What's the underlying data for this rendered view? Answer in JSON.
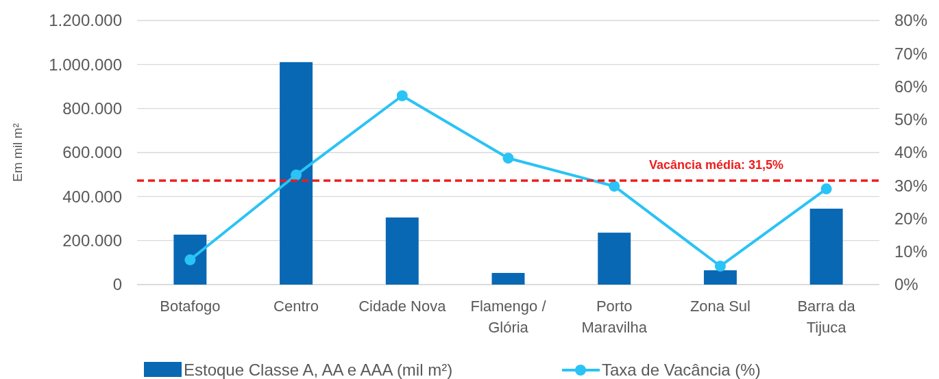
{
  "chart_data": {
    "type": "bar",
    "categories": [
      "Botafogo",
      "Centro",
      "Cidade Nova",
      "Flamengo / Glória",
      "Porto Maravilha",
      "Zona Sul",
      "Barra da Tijuca"
    ],
    "series": [
      {
        "name": "Estoque Classe A, AA e AAA (mil m²)",
        "color": "#0868b4",
        "values": [
          227000,
          1011000,
          305000,
          53000,
          236000,
          65000,
          345000
        ]
      },
      {
        "name": "Taxa de Vacância (%)",
        "type": "line",
        "axis": "y2",
        "color": "#2ac3f5",
        "values": [
          7.5,
          33.2,
          57.2,
          38.3,
          29.8,
          5.6,
          29.0
        ]
      }
    ],
    "ylabel": "Em mil m²",
    "ylim": [
      0,
      1200000
    ],
    "yticks": [
      0,
      {
        "value": 200000,
        "label": "200.000"
      },
      {
        "value": 400000,
        "label": "400.000"
      },
      {
        "value": 600000,
        "label": "600.000"
      },
      {
        "value": 800000,
        "label": "800.000"
      },
      {
        "value": 1000000,
        "label": "1.000.000"
      },
      {
        "value": 1200000,
        "label": "1.200.000"
      }
    ],
    "y2lim": [
      0,
      80
    ],
    "y2ticks": [
      {
        "value": 0,
        "label": "0%"
      },
      {
        "value": 10,
        "label": "10%"
      },
      {
        "value": 20,
        "label": "20%"
      },
      {
        "value": 30,
        "label": "30%"
      },
      {
        "value": 40,
        "label": "40%"
      },
      {
        "value": 50,
        "label": "50%"
      },
      {
        "value": 60,
        "label": "60%"
      },
      {
        "value": 70,
        "label": "70%"
      },
      {
        "value": 80,
        "label": "80%"
      }
    ],
    "ref_lines": [
      {
        "axis": "y2",
        "value": 31.5,
        "label": "Vacância média: 31,5%",
        "color": "#ee1c1c",
        "line_style": "dashed"
      }
    ],
    "grid": "y",
    "legend": "bottom",
    "marker": "circle"
  }
}
